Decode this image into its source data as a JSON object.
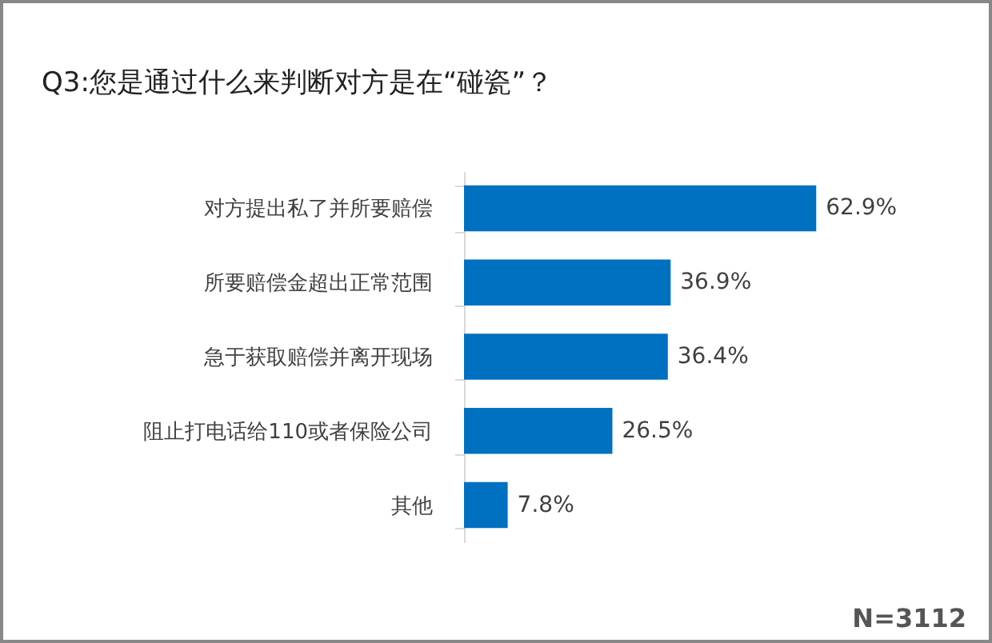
{
  "chart_data": {
    "type": "bar",
    "orientation": "horizontal",
    "title": "Q3:您是通过什么来判断对方是在“碰瓷”？",
    "categories": [
      "对方提出私了并所要赔偿",
      "所要赔偿金超出正常范围",
      "急于获取赔偿并离开现场",
      "阻止打电话给110或者保险公司",
      "其他"
    ],
    "values": [
      62.9,
      36.9,
      36.4,
      26.5,
      7.8
    ],
    "color": "#0070c0",
    "data_labels": true,
    "value_labels": [
      "62.9%",
      "36.9%",
      "36.4%",
      "26.5%",
      "7.8%"
    ],
    "annotations": [
      "N=3112"
    ]
  }
}
